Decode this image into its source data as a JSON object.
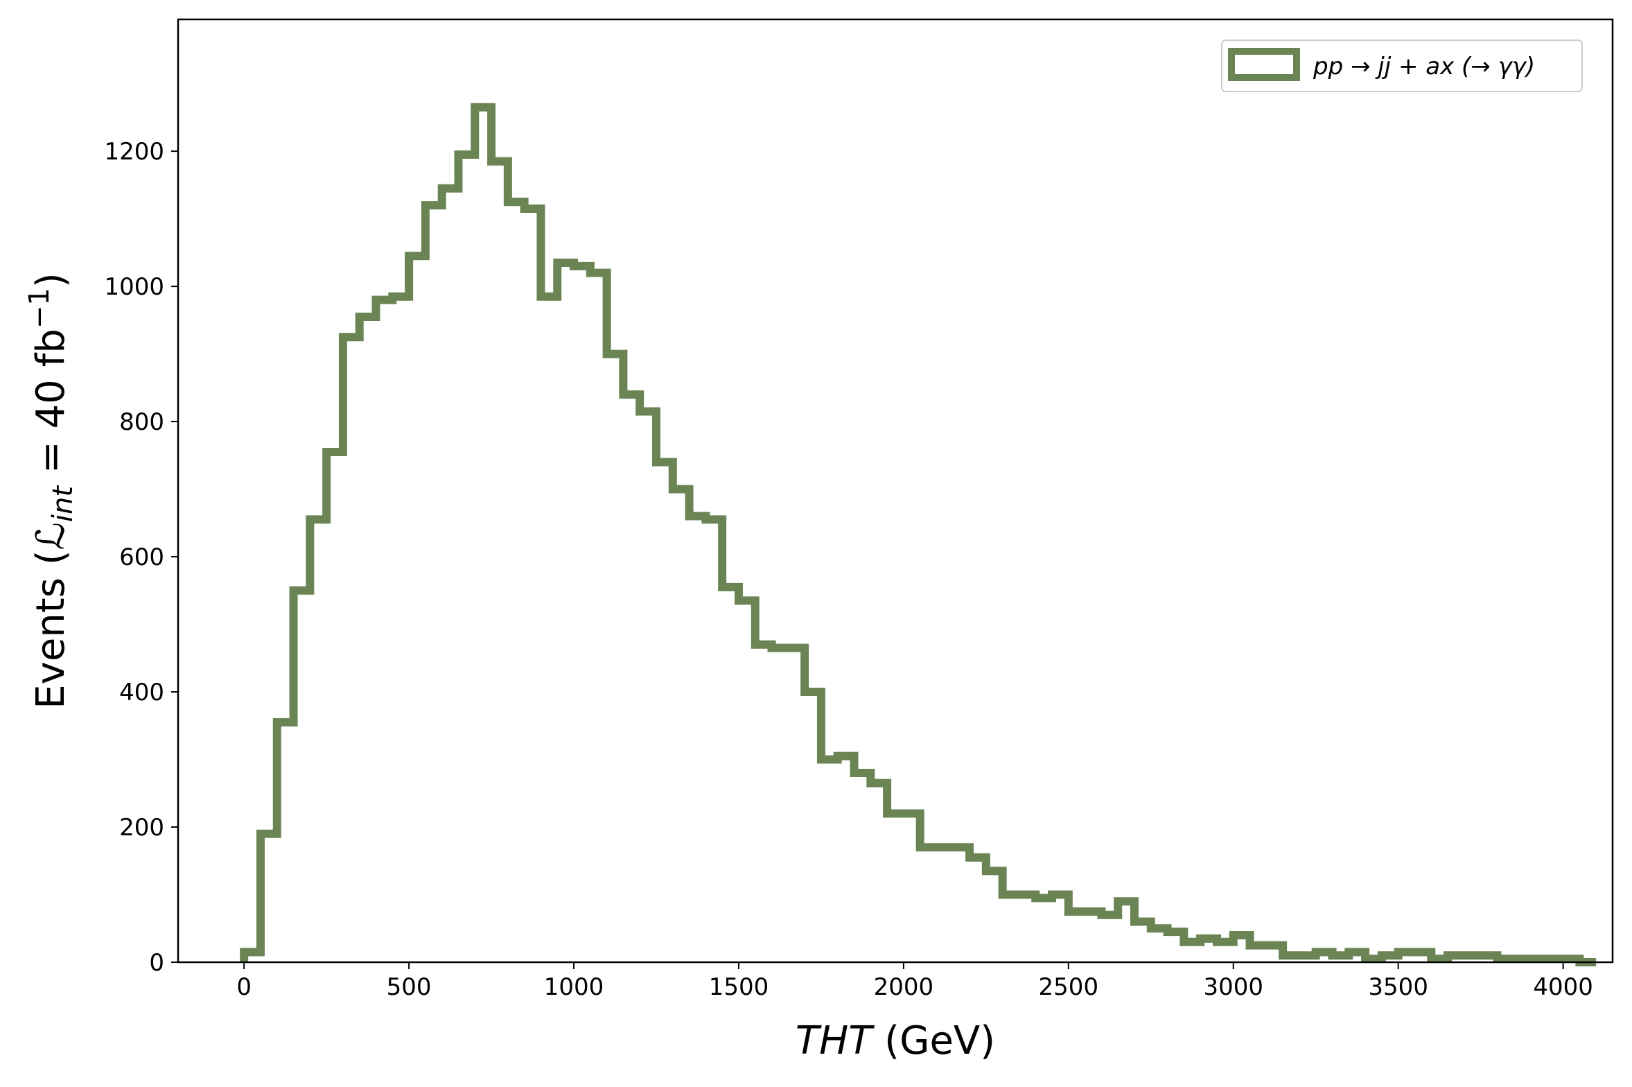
{
  "chart_data": {
    "type": "histogram",
    "xlabel_italic": "THT",
    "xlabel_unit": " (GeV)",
    "ylabel_prefix": "Events (",
    "ylabel_math": "ℒ",
    "ylabel_sub": "int",
    "ylabel_suffix": " = 40 fb",
    "ylabel_sup": "−1",
    "ylabel_close": ")",
    "xlim": [
      -200,
      4150
    ],
    "ylim": [
      0,
      1395
    ],
    "xticks": [
      0,
      500,
      1000,
      1500,
      2000,
      2500,
      3000,
      3500,
      4000
    ],
    "yticks": [
      0,
      200,
      400,
      600,
      800,
      1000,
      1200
    ],
    "series": [
      {
        "name": "pp → jj + ax (→ γγ)",
        "color": "#6a8454",
        "bin_width": 50,
        "bin_start": 0,
        "values": [
          15,
          190,
          355,
          550,
          655,
          755,
          925,
          955,
          980,
          985,
          1045,
          1120,
          1145,
          1195,
          1265,
          1185,
          1125,
          1115,
          985,
          1035,
          1030,
          1020,
          900,
          840,
          815,
          740,
          700,
          660,
          655,
          555,
          535,
          470,
          465,
          465,
          400,
          300,
          305,
          280,
          265,
          220,
          220,
          170,
          170,
          170,
          155,
          135,
          100,
          100,
          95,
          100,
          75,
          75,
          70,
          90,
          60,
          50,
          45,
          30,
          35,
          30,
          40,
          25,
          25,
          10,
          10,
          15,
          10,
          15,
          5,
          10,
          15,
          15,
          5,
          10,
          10,
          10,
          5,
          5,
          5,
          5,
          5,
          0
        ]
      }
    ],
    "legend_position": "upper right"
  }
}
